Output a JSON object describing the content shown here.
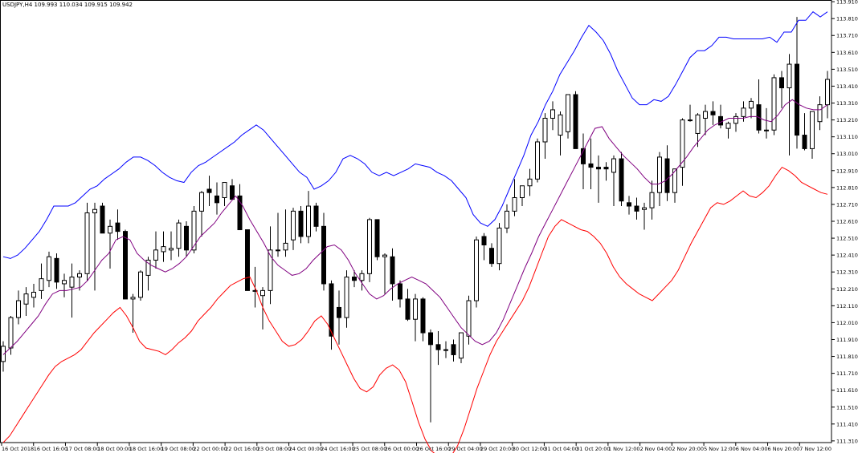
{
  "header": {
    "symbol": "USDJPY,H4",
    "ohlc": "109.993 110.034 109.915 109.942"
  },
  "colors": {
    "upper_band": "#0000ff",
    "lower_band": "#ff0000",
    "middle_band": "#800080",
    "candle": "#000000",
    "grid_frame": "#000000"
  },
  "chart_data": {
    "type": "candlestick",
    "y_ticks": [
      "113.910",
      "113.810",
      "113.710",
      "113.610",
      "113.510",
      "113.410",
      "113.310",
      "113.210",
      "113.110",
      "113.010",
      "112.910",
      "112.810",
      "112.710",
      "112.610",
      "112.510",
      "112.410",
      "112.310",
      "112.210",
      "112.110",
      "112.010",
      "111.910",
      "111.810",
      "111.710",
      "111.610",
      "111.510",
      "111.410",
      "111.310"
    ],
    "ylim": [
      111.3,
      113.92
    ],
    "x_labels": [
      "16 Oct 2018",
      "16 Oct 16:00",
      "17 Oct 08:00",
      "18 Oct 00:00",
      "18 Oct 16:00",
      "19 Oct 08:00",
      "22 Oct 00:00",
      "22 Oct 16:00",
      "23 Oct 08:00",
      "24 Oct 00:00",
      "24 Oct 16:00",
      "25 Oct 08:00",
      "26 Oct 00:00",
      "26 Oct 16:00",
      "29 Oct 04:00",
      "29 Oct 20:00",
      "30 Oct 12:00",
      "31 Oct 04:00",
      "31 Oct 20:00",
      "1 Nov 12:00",
      "2 Nov 04:00",
      "2 Nov 20:00",
      "5 Nov 12:00",
      "6 Nov 04:00",
      "6 Nov 20:00",
      "7 Nov 12:00"
    ],
    "candles": [
      {
        "o": 111.78,
        "h": 111.9,
        "l": 111.72,
        "c": 111.87
      },
      {
        "o": 111.86,
        "h": 112.05,
        "l": 111.82,
        "c": 112.04
      },
      {
        "o": 112.04,
        "h": 112.2,
        "l": 112.0,
        "c": 112.14
      },
      {
        "o": 112.12,
        "h": 112.22,
        "l": 112.05,
        "c": 112.18
      },
      {
        "o": 112.16,
        "h": 112.24,
        "l": 112.1,
        "c": 112.19
      },
      {
        "o": 112.2,
        "h": 112.36,
        "l": 112.15,
        "c": 112.27
      },
      {
        "o": 112.26,
        "h": 112.43,
        "l": 112.22,
        "c": 112.4
      },
      {
        "o": 112.39,
        "h": 112.42,
        "l": 112.21,
        "c": 112.25
      },
      {
        "o": 112.24,
        "h": 112.3,
        "l": 112.16,
        "c": 112.26
      },
      {
        "o": 112.22,
        "h": 112.36,
        "l": 112.04,
        "c": 112.28
      },
      {
        "o": 112.28,
        "h": 112.32,
        "l": 112.2,
        "c": 112.3
      },
      {
        "o": 112.3,
        "h": 112.72,
        "l": 112.26,
        "c": 112.66
      },
      {
        "o": 112.66,
        "h": 112.72,
        "l": 112.2,
        "c": 112.68
      },
      {
        "o": 112.7,
        "h": 112.72,
        "l": 112.54,
        "c": 112.54
      },
      {
        "o": 112.54,
        "h": 112.62,
        "l": 112.33,
        "c": 112.58
      },
      {
        "o": 112.6,
        "h": 112.68,
        "l": 112.5,
        "c": 112.55
      },
      {
        "o": 112.55,
        "h": 112.56,
        "l": 112.15,
        "c": 112.15
      },
      {
        "o": 112.15,
        "h": 112.18,
        "l": 111.95,
        "c": 112.16
      },
      {
        "o": 112.16,
        "h": 112.32,
        "l": 112.14,
        "c": 112.31
      },
      {
        "o": 112.29,
        "h": 112.4,
        "l": 112.2,
        "c": 112.38
      },
      {
        "o": 112.38,
        "h": 112.55,
        "l": 112.33,
        "c": 112.44
      },
      {
        "o": 112.43,
        "h": 112.55,
        "l": 112.37,
        "c": 112.46
      },
      {
        "o": 112.44,
        "h": 112.55,
        "l": 112.38,
        "c": 112.45
      },
      {
        "o": 112.45,
        "h": 112.62,
        "l": 112.4,
        "c": 112.6
      },
      {
        "o": 112.58,
        "h": 112.61,
        "l": 112.4,
        "c": 112.44
      },
      {
        "o": 112.44,
        "h": 112.7,
        "l": 112.42,
        "c": 112.67
      },
      {
        "o": 112.67,
        "h": 112.79,
        "l": 112.52,
        "c": 112.78
      },
      {
        "o": 112.8,
        "h": 112.88,
        "l": 112.7,
        "c": 112.78
      },
      {
        "o": 112.76,
        "h": 112.84,
        "l": 112.65,
        "c": 112.72
      },
      {
        "o": 112.75,
        "h": 112.84,
        "l": 112.7,
        "c": 112.84
      },
      {
        "o": 112.82,
        "h": 112.86,
        "l": 112.76,
        "c": 112.74
      },
      {
        "o": 112.76,
        "h": 112.83,
        "l": 112.56,
        "c": 112.56
      },
      {
        "o": 112.56,
        "h": 112.56,
        "l": 112.2,
        "c": 112.2
      },
      {
        "o": 112.2,
        "h": 112.34,
        "l": 112.1,
        "c": 112.2
      },
      {
        "o": 112.17,
        "h": 112.22,
        "l": 111.97,
        "c": 112.2
      },
      {
        "o": 112.2,
        "h": 112.58,
        "l": 112.12,
        "c": 112.44
      },
      {
        "o": 112.44,
        "h": 112.66,
        "l": 112.4,
        "c": 112.44
      },
      {
        "o": 112.44,
        "h": 112.68,
        "l": 112.4,
        "c": 112.48
      },
      {
        "o": 112.5,
        "h": 112.69,
        "l": 112.44,
        "c": 112.67
      },
      {
        "o": 112.67,
        "h": 112.7,
        "l": 112.48,
        "c": 112.52
      },
      {
        "o": 112.52,
        "h": 112.79,
        "l": 112.48,
        "c": 112.7
      },
      {
        "o": 112.7,
        "h": 112.72,
        "l": 112.55,
        "c": 112.58
      },
      {
        "o": 112.58,
        "h": 112.66,
        "l": 112.2,
        "c": 112.24
      },
      {
        "o": 112.24,
        "h": 112.26,
        "l": 111.85,
        "c": 111.93
      },
      {
        "o": 112.1,
        "h": 112.2,
        "l": 111.88,
        "c": 112.04
      },
      {
        "o": 112.04,
        "h": 112.32,
        "l": 111.98,
        "c": 112.28
      },
      {
        "o": 112.28,
        "h": 112.32,
        "l": 112.22,
        "c": 112.26
      },
      {
        "o": 112.26,
        "h": 112.32,
        "l": 112.2,
        "c": 112.3
      },
      {
        "o": 112.3,
        "h": 112.63,
        "l": 112.25,
        "c": 112.62
      },
      {
        "o": 112.62,
        "h": 112.62,
        "l": 112.38,
        "c": 112.4
      },
      {
        "o": 112.4,
        "h": 112.42,
        "l": 112.18,
        "c": 112.41
      },
      {
        "o": 112.4,
        "h": 112.45,
        "l": 112.14,
        "c": 112.24
      },
      {
        "o": 112.24,
        "h": 112.26,
        "l": 112.1,
        "c": 112.15
      },
      {
        "o": 112.15,
        "h": 112.21,
        "l": 112.02,
        "c": 112.03
      },
      {
        "o": 112.03,
        "h": 112.18,
        "l": 111.9,
        "c": 112.15
      },
      {
        "o": 112.15,
        "h": 112.16,
        "l": 111.9,
        "c": 111.95
      },
      {
        "o": 111.95,
        "h": 111.97,
        "l": 111.42,
        "c": 111.88
      },
      {
        "o": 111.88,
        "h": 111.96,
        "l": 111.76,
        "c": 111.85
      },
      {
        "o": 111.85,
        "h": 111.9,
        "l": 111.8,
        "c": 111.85
      },
      {
        "o": 111.88,
        "h": 111.91,
        "l": 111.78,
        "c": 111.82
      },
      {
        "o": 111.8,
        "h": 111.95,
        "l": 111.77,
        "c": 111.95
      },
      {
        "o": 111.93,
        "h": 112.17,
        "l": 111.88,
        "c": 112.14
      },
      {
        "o": 112.14,
        "h": 112.52,
        "l": 112.1,
        "c": 112.5
      },
      {
        "o": 112.52,
        "h": 112.54,
        "l": 112.38,
        "c": 112.47
      },
      {
        "o": 112.45,
        "h": 112.48,
        "l": 112.34,
        "c": 112.36
      },
      {
        "o": 112.36,
        "h": 112.6,
        "l": 112.32,
        "c": 112.57
      },
      {
        "o": 112.57,
        "h": 112.71,
        "l": 112.54,
        "c": 112.67
      },
      {
        "o": 112.67,
        "h": 112.86,
        "l": 112.64,
        "c": 112.75
      },
      {
        "o": 112.75,
        "h": 112.82,
        "l": 112.7,
        "c": 112.82
      },
      {
        "o": 112.82,
        "h": 112.92,
        "l": 112.76,
        "c": 112.86
      },
      {
        "o": 112.86,
        "h": 113.1,
        "l": 112.84,
        "c": 113.08
      },
      {
        "o": 113.08,
        "h": 113.25,
        "l": 112.98,
        "c": 113.22
      },
      {
        "o": 113.22,
        "h": 113.32,
        "l": 113.15,
        "c": 113.27
      },
      {
        "o": 113.12,
        "h": 113.26,
        "l": 113.0,
        "c": 113.24
      },
      {
        "o": 113.14,
        "h": 113.36,
        "l": 113.1,
        "c": 113.36
      },
      {
        "o": 113.36,
        "h": 113.38,
        "l": 113.04,
        "c": 113.04
      },
      {
        "o": 113.04,
        "h": 113.13,
        "l": 112.8,
        "c": 112.95
      },
      {
        "o": 112.95,
        "h": 113.1,
        "l": 112.8,
        "c": 112.93
      },
      {
        "o": 112.93,
        "h": 113.0,
        "l": 112.72,
        "c": 112.92
      },
      {
        "o": 112.93,
        "h": 112.96,
        "l": 112.85,
        "c": 112.92
      },
      {
        "o": 112.9,
        "h": 113.0,
        "l": 112.7,
        "c": 112.98
      },
      {
        "o": 112.98,
        "h": 113.02,
        "l": 112.7,
        "c": 112.73
      },
      {
        "o": 112.72,
        "h": 112.76,
        "l": 112.65,
        "c": 112.7
      },
      {
        "o": 112.7,
        "h": 112.75,
        "l": 112.62,
        "c": 112.67
      },
      {
        "o": 112.68,
        "h": 112.72,
        "l": 112.56,
        "c": 112.69
      },
      {
        "o": 112.69,
        "h": 112.85,
        "l": 112.62,
        "c": 112.78
      },
      {
        "o": 112.78,
        "h": 113.02,
        "l": 112.7,
        "c": 112.99
      },
      {
        "o": 112.98,
        "h": 113.06,
        "l": 112.73,
        "c": 112.78
      },
      {
        "o": 112.78,
        "h": 112.92,
        "l": 112.72,
        "c": 112.92
      },
      {
        "o": 112.93,
        "h": 113.22,
        "l": 112.82,
        "c": 113.21
      },
      {
        "o": 113.21,
        "h": 113.3,
        "l": 113.2,
        "c": 113.21
      },
      {
        "o": 113.13,
        "h": 113.25,
        "l": 113.05,
        "c": 113.24
      },
      {
        "o": 113.22,
        "h": 113.3,
        "l": 113.12,
        "c": 113.26
      },
      {
        "o": 113.26,
        "h": 113.32,
        "l": 113.18,
        "c": 113.24
      },
      {
        "o": 113.23,
        "h": 113.3,
        "l": 113.16,
        "c": 113.18
      },
      {
        "o": 113.16,
        "h": 113.2,
        "l": 113.1,
        "c": 113.19
      },
      {
        "o": 113.19,
        "h": 113.25,
        "l": 113.14,
        "c": 113.23
      },
      {
        "o": 113.23,
        "h": 113.32,
        "l": 113.2,
        "c": 113.28
      },
      {
        "o": 113.28,
        "h": 113.34,
        "l": 113.22,
        "c": 113.32
      },
      {
        "o": 113.3,
        "h": 113.45,
        "l": 113.13,
        "c": 113.15
      },
      {
        "o": 113.15,
        "h": 113.28,
        "l": 113.1,
        "c": 113.15
      },
      {
        "o": 113.15,
        "h": 113.48,
        "l": 113.12,
        "c": 113.46
      },
      {
        "o": 113.46,
        "h": 113.5,
        "l": 113.28,
        "c": 113.4
      },
      {
        "o": 113.4,
        "h": 113.6,
        "l": 113.0,
        "c": 113.54
      },
      {
        "o": 113.54,
        "h": 113.82,
        "l": 113.04,
        "c": 113.12
      },
      {
        "o": 113.12,
        "h": 113.25,
        "l": 113.03,
        "c": 113.04
      },
      {
        "o": 113.04,
        "h": 113.26,
        "l": 112.98,
        "c": 113.26
      },
      {
        "o": 113.2,
        "h": 113.35,
        "l": 113.15,
        "c": 113.3
      },
      {
        "o": 113.3,
        "h": 113.5,
        "l": 113.22,
        "c": 113.45
      }
    ],
    "upper_band": [
      112.4,
      112.39,
      112.41,
      112.45,
      112.5,
      112.55,
      112.62,
      112.7,
      112.7,
      112.7,
      112.72,
      112.76,
      112.8,
      112.82,
      112.86,
      112.89,
      112.92,
      112.96,
      112.99,
      112.99,
      112.97,
      112.94,
      112.9,
      112.87,
      112.85,
      112.84,
      112.9,
      112.94,
      112.96,
      112.99,
      113.02,
      113.05,
      113.08,
      113.12,
      113.15,
      113.18,
      113.15,
      113.1,
      113.05,
      113.0,
      112.95,
      112.9,
      112.87,
      112.8,
      112.82,
      112.85,
      112.9,
      112.98,
      113.0,
      112.98,
      112.95,
      112.9,
      112.88,
      112.9,
      112.88,
      112.9,
      112.92,
      112.95,
      112.94,
      112.93,
      112.9,
      112.88,
      112.85,
      112.8,
      112.75,
      112.65,
      112.6,
      112.58,
      112.62,
      112.7,
      112.8,
      112.9,
      113.0,
      113.12,
      113.2,
      113.3,
      113.38,
      113.48,
      113.55,
      113.62,
      113.7,
      113.77,
      113.73,
      113.68,
      113.6,
      113.5,
      113.42,
      113.34,
      113.3,
      113.3,
      113.33,
      113.32,
      113.35,
      113.42,
      113.5,
      113.58,
      113.62,
      113.62,
      113.65,
      113.7,
      113.7,
      113.69,
      113.69,
      113.69,
      113.69,
      113.69,
      113.7,
      113.67,
      113.73,
      113.73,
      113.8,
      113.8,
      113.85,
      113.82,
      113.85
    ],
    "middle_band": [
      111.82,
      111.86,
      111.9,
      111.95,
      112.0,
      112.05,
      112.12,
      112.18,
      112.2,
      112.2,
      112.21,
      112.22,
      112.26,
      112.32,
      112.38,
      112.42,
      112.5,
      112.52,
      112.5,
      112.42,
      112.38,
      112.35,
      112.33,
      112.31,
      112.33,
      112.36,
      112.4,
      112.46,
      112.52,
      112.56,
      112.6,
      112.66,
      112.71,
      112.76,
      112.7,
      112.62,
      112.55,
      112.48,
      112.4,
      112.35,
      112.32,
      112.29,
      112.3,
      112.33,
      112.38,
      112.42,
      112.46,
      112.47,
      112.44,
      112.38,
      112.3,
      112.24,
      112.18,
      112.15,
      112.17,
      112.21,
      112.24,
      112.26,
      112.28,
      112.26,
      112.24,
      112.2,
      112.16,
      112.1,
      112.04,
      111.98,
      111.94,
      111.9,
      111.88,
      111.9,
      111.95,
      112.03,
      112.13,
      112.23,
      112.33,
      112.42,
      112.52,
      112.6,
      112.68,
      112.76,
      112.84,
      112.92,
      113.0,
      113.08,
      113.16,
      113.17,
      113.1,
      113.05,
      113.0,
      112.96,
      112.92,
      112.87,
      112.83,
      112.83,
      112.85,
      112.89,
      112.94,
      112.99,
      113.05,
      113.1,
      113.15,
      113.18,
      113.2,
      113.22,
      113.22,
      113.22,
      113.23,
      113.23,
      113.21,
      113.2,
      113.24,
      113.3,
      113.33,
      113.3,
      113.28,
      113.27,
      113.27,
      113.3
    ],
    "lower_band": [
      111.3,
      111.34,
      111.4,
      111.46,
      111.52,
      111.58,
      111.64,
      111.7,
      111.75,
      111.78,
      111.8,
      111.82,
      111.85,
      111.9,
      111.95,
      111.99,
      112.03,
      112.07,
      112.1,
      112.05,
      111.98,
      111.9,
      111.86,
      111.85,
      111.84,
      111.82,
      111.85,
      111.89,
      111.92,
      111.96,
      112.02,
      112.06,
      112.1,
      112.15,
      112.19,
      112.23,
      112.25,
      112.27,
      112.28,
      112.2,
      112.1,
      112.02,
      111.96,
      111.9,
      111.87,
      111.88,
      111.91,
      111.96,
      112.02,
      112.05,
      112.0,
      111.92,
      111.84,
      111.76,
      111.68,
      111.62,
      111.6,
      111.63,
      111.7,
      111.74,
      111.76,
      111.73,
      111.66,
      111.54,
      111.42,
      111.32,
      111.25,
      111.22,
      111.2,
      111.22,
      111.28,
      111.38,
      111.5,
      111.62,
      111.72,
      111.82,
      111.9,
      111.96,
      112.02,
      112.08,
      112.14,
      112.22,
      112.32,
      112.42,
      112.52,
      112.58,
      112.62,
      112.6,
      112.58,
      112.56,
      112.55,
      112.52,
      112.48,
      112.42,
      112.34,
      112.28,
      112.24,
      112.21,
      112.18,
      112.16,
      112.14,
      112.18,
      112.22,
      112.26,
      112.32,
      112.4,
      112.48,
      112.55,
      112.62,
      112.69,
      112.72,
      112.71,
      112.73,
      112.76,
      112.79,
      112.76,
      112.75,
      112.78,
      112.82,
      112.88,
      112.93,
      112.91,
      112.88,
      112.84,
      112.82,
      112.8,
      112.78,
      112.77
    ]
  }
}
